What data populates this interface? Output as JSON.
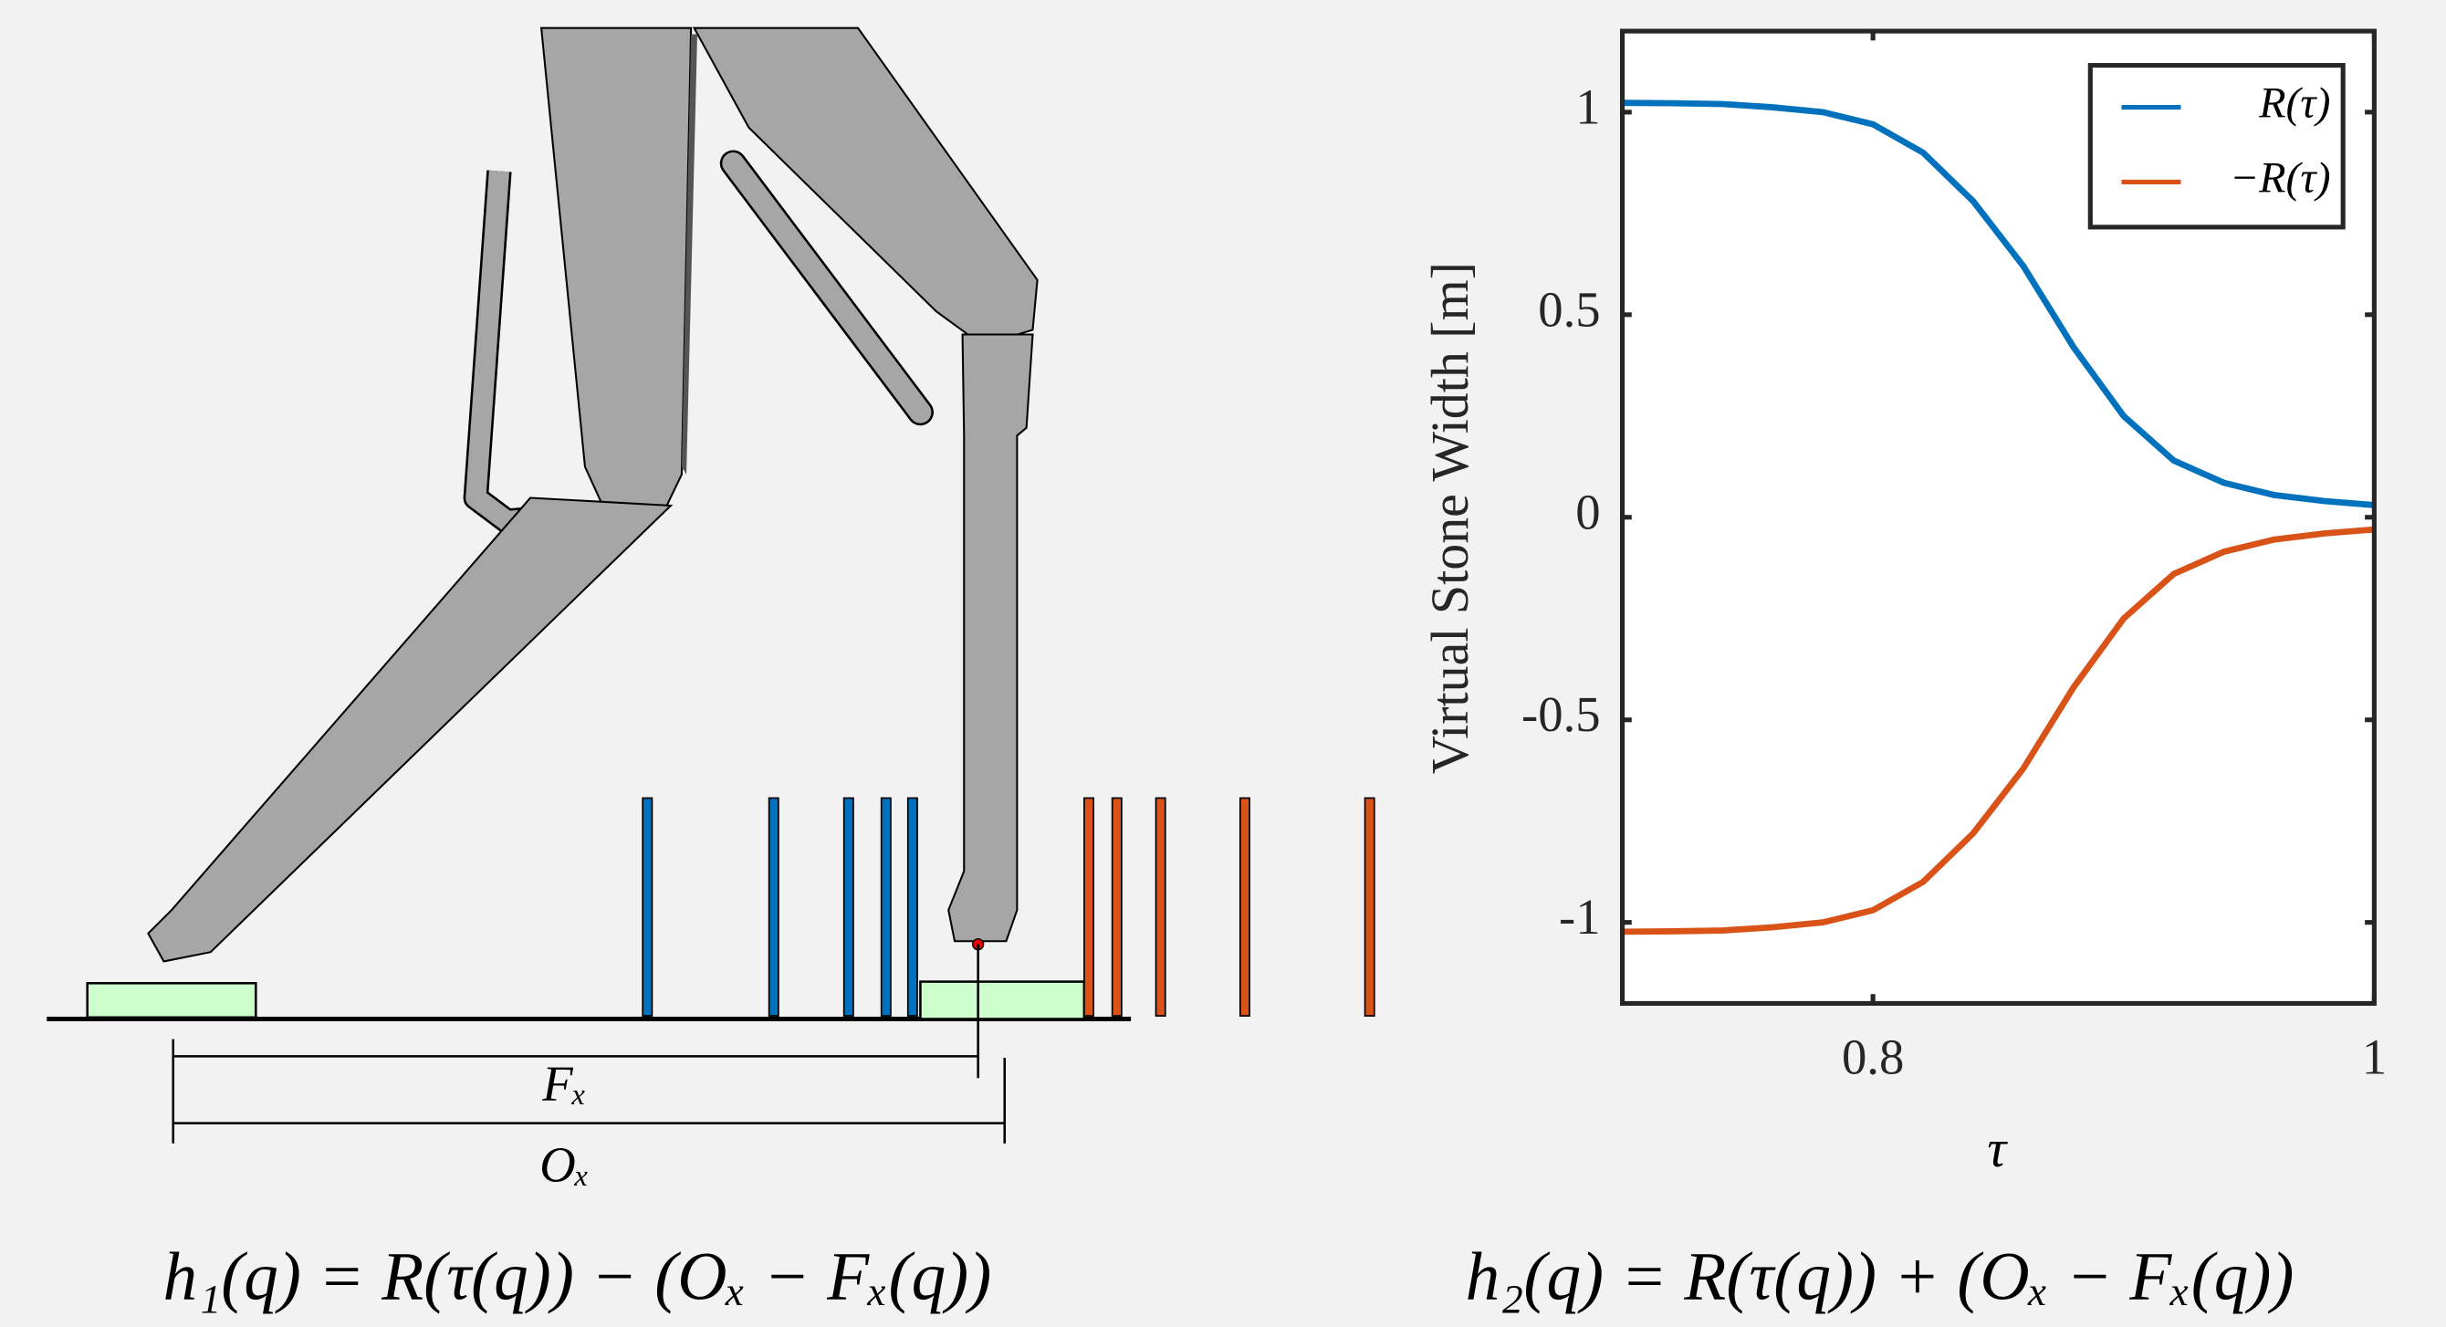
{
  "chart_data": {
    "type": "line",
    "xlabel": "τ",
    "ylabel": "Virtual Stone Width [m]",
    "x": [
      0.7,
      0.72,
      0.74,
      0.76,
      0.78,
      0.8,
      0.82,
      0.84,
      0.86,
      0.88,
      0.9,
      0.92,
      0.94,
      0.96,
      0.98,
      1.0
    ],
    "series": [
      {
        "name": "R(τ)",
        "color": "#0072bd",
        "values": [
          1.023,
          1.022,
          1.02,
          1.012,
          1.0,
          0.97,
          0.9,
          0.78,
          0.62,
          0.42,
          0.25,
          0.14,
          0.085,
          0.055,
          0.04,
          0.03
        ]
      },
      {
        "name": "−R(τ)",
        "color": "#d95319",
        "values": [
          -1.023,
          -1.022,
          -1.02,
          -1.012,
          -1.0,
          -0.97,
          -0.9,
          -0.78,
          -0.62,
          -0.42,
          -0.25,
          -0.14,
          -0.085,
          -0.055,
          -0.04,
          -0.03
        ]
      }
    ],
    "xlim": [
      0.7,
      1
    ],
    "xticks": [
      0.8,
      1
    ],
    "ylim": [
      -1.2,
      1.2
    ],
    "yticks": [
      -1,
      -0.5,
      0,
      0.5,
      1
    ],
    "grid": false,
    "legend": "upper-right"
  },
  "diagram": {
    "labels": [
      "Fₓ",
      "Oₓ"
    ],
    "equations": [
      "h₁(q) = R(τ(q)) − (Oₓ − Fₓ(q))",
      "h₂(q) = R(τ(q)) + (Oₓ − Fₓ(q))"
    ]
  }
}
